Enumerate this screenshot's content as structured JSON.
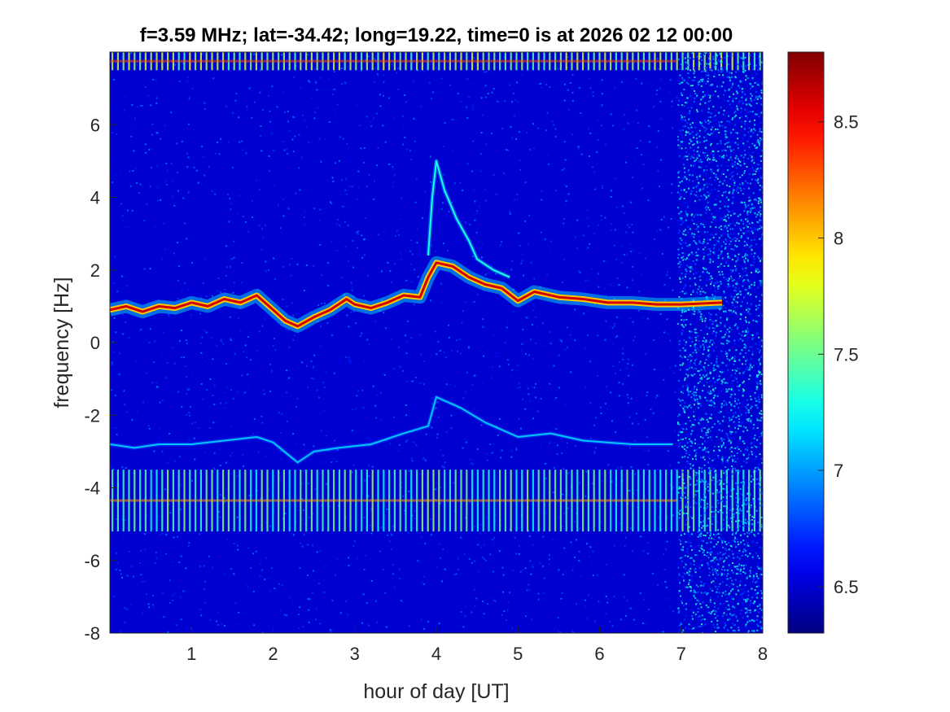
{
  "chart_data": {
    "type": "heatmap",
    "title": "f=3.59 MHz;  lat=-34.42; long=19.22, time=0 is at 2026 02 12 00:00",
    "xlabel": "hour of day [UT]",
    "ylabel": "frequency [Hz]",
    "xlim": [
      0,
      8
    ],
    "ylim": [
      -8,
      8
    ],
    "x_ticks": [
      "1",
      "2",
      "3",
      "4",
      "5",
      "6",
      "7",
      "8"
    ],
    "x_tick_values": [
      1,
      2,
      3,
      4,
      5,
      6,
      7,
      8
    ],
    "y_ticks": [
      "-8",
      "-6",
      "-4",
      "-2",
      "0",
      "2",
      "4",
      "6"
    ],
    "y_tick_values": [
      -8,
      -6,
      -4,
      -2,
      0,
      2,
      4,
      6
    ],
    "colorbar": {
      "colormap": "jet",
      "clim": [
        6.3,
        8.8
      ],
      "ticks": [
        "6.5",
        "7",
        "7.5",
        "8",
        "8.5"
      ],
      "tick_values": [
        6.5,
        7,
        7.5,
        8,
        8.5
      ]
    },
    "background_level": 6.5,
    "traces": [
      {
        "description": "main doppler trace (positive)",
        "level": 8.6,
        "points": [
          [
            0,
            0.9
          ],
          [
            0.2,
            1.0
          ],
          [
            0.4,
            0.85
          ],
          [
            0.6,
            1.0
          ],
          [
            0.8,
            0.95
          ],
          [
            1.0,
            1.1
          ],
          [
            1.2,
            1.0
          ],
          [
            1.4,
            1.2
          ],
          [
            1.6,
            1.1
          ],
          [
            1.8,
            1.3
          ],
          [
            2.0,
            0.9
          ],
          [
            2.15,
            0.6
          ],
          [
            2.3,
            0.45
          ],
          [
            2.5,
            0.7
          ],
          [
            2.7,
            0.9
          ],
          [
            2.9,
            1.2
          ],
          [
            3.0,
            1.05
          ],
          [
            3.2,
            0.95
          ],
          [
            3.4,
            1.1
          ],
          [
            3.6,
            1.3
          ],
          [
            3.8,
            1.25
          ],
          [
            3.9,
            1.8
          ],
          [
            4.0,
            2.2
          ],
          [
            4.2,
            2.1
          ],
          [
            4.4,
            1.8
          ],
          [
            4.6,
            1.6
          ],
          [
            4.8,
            1.5
          ],
          [
            5.0,
            1.15
          ],
          [
            5.2,
            1.4
          ],
          [
            5.5,
            1.25
          ],
          [
            5.8,
            1.2
          ],
          [
            6.1,
            1.1
          ],
          [
            6.4,
            1.1
          ],
          [
            6.7,
            1.05
          ],
          [
            7.0,
            1.05
          ],
          [
            7.5,
            1.1
          ]
        ]
      },
      {
        "description": "faint spur rising above main trace",
        "level": 7.3,
        "points": [
          [
            3.9,
            2.4
          ],
          [
            3.95,
            4.0
          ],
          [
            4.0,
            5.0
          ],
          [
            4.1,
            4.2
          ],
          [
            4.25,
            3.4
          ],
          [
            4.4,
            2.8
          ],
          [
            4.5,
            2.3
          ],
          [
            4.7,
            2.0
          ],
          [
            4.9,
            1.8
          ]
        ]
      },
      {
        "description": "faint mirror trace (negative)",
        "level": 7.1,
        "points": [
          [
            0,
            -2.8
          ],
          [
            0.3,
            -2.9
          ],
          [
            0.6,
            -2.8
          ],
          [
            1.0,
            -2.8
          ],
          [
            1.4,
            -2.7
          ],
          [
            1.8,
            -2.6
          ],
          [
            2.0,
            -2.75
          ],
          [
            2.3,
            -3.3
          ],
          [
            2.5,
            -3.0
          ],
          [
            2.8,
            -2.9
          ],
          [
            3.2,
            -2.8
          ],
          [
            3.6,
            -2.5
          ],
          [
            3.9,
            -2.3
          ],
          [
            4.0,
            -1.5
          ],
          [
            4.3,
            -1.8
          ],
          [
            4.6,
            -2.2
          ],
          [
            5.0,
            -2.6
          ],
          [
            5.4,
            -2.5
          ],
          [
            5.8,
            -2.7
          ],
          [
            6.4,
            -2.8
          ],
          [
            6.9,
            -2.8
          ]
        ]
      }
    ],
    "horizontal_bands": [
      {
        "description": "strong interference band top",
        "y_range": [
          7.5,
          8.0
        ],
        "level": 7.8
      },
      {
        "description": "interference band bottom",
        "y_range": [
          -5.2,
          -3.5
        ],
        "level": 7.6
      }
    ],
    "noise_region": {
      "description": "increased noise after hour 7",
      "x_range": [
        6.95,
        8.0
      ],
      "level": 7.0
    }
  }
}
